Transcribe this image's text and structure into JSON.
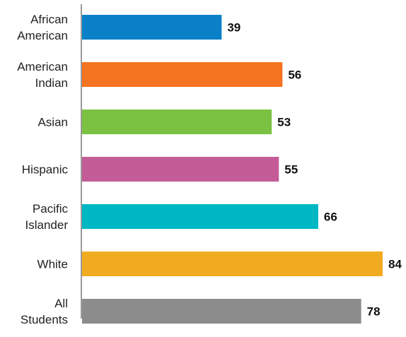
{
  "chart_data": {
    "type": "bar",
    "orientation": "horizontal",
    "categories": [
      [
        "African",
        "American"
      ],
      [
        "American",
        "Indian"
      ],
      [
        "Asian"
      ],
      [
        "Hispanic"
      ],
      [
        "Pacific",
        "Islander"
      ],
      [
        "White"
      ],
      [
        "All",
        "Students"
      ]
    ],
    "values": [
      39,
      56,
      53,
      55,
      66,
      84,
      78
    ],
    "colors": [
      "#0a80c8",
      "#f47321",
      "#7cc242",
      "#c45c98",
      "#00b7c4",
      "#f1ab21",
      "#8c8c8c"
    ],
    "xlim": [
      0,
      84
    ],
    "data_labels": true,
    "grid": false,
    "axis_line_color": "#333333"
  }
}
